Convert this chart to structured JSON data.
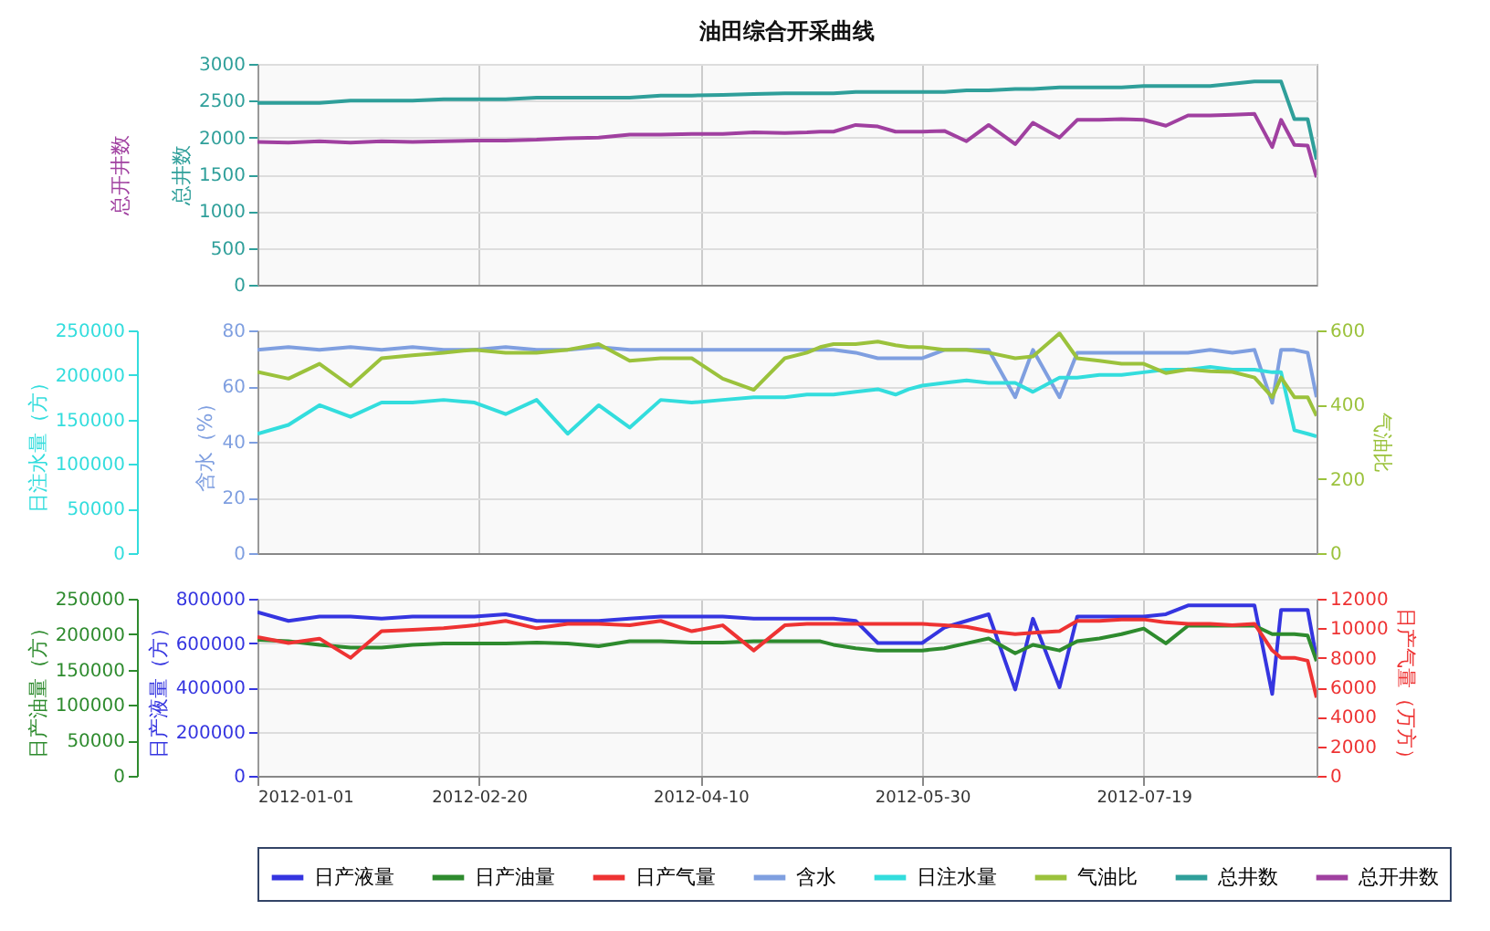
{
  "chart_data": [
    {
      "type": "line",
      "title": "油田综合开采曲线",
      "ylabel": "总井数",
      "y2label": "总开井数",
      "ylim": [
        0,
        3000
      ],
      "yticks": [
        0,
        500,
        1000,
        1500,
        2000,
        2500,
        3000
      ],
      "xlim": [
        "2012-01-01",
        "2012-08-27"
      ],
      "xticks": [
        "2012-01-01",
        "2012-02-20",
        "2012-04-10",
        "2012-05-30",
        "2012-07-19"
      ],
      "tick_labels": "y",
      "grid": true,
      "legend": "bottom",
      "x": [
        "2012-01-01",
        "2012-01-08",
        "2012-01-15",
        "2012-01-22",
        "2012-01-29",
        "2012-02-05",
        "2012-02-12",
        "2012-02-19",
        "2012-02-26",
        "2012-03-04",
        "2012-03-11",
        "2012-03-18",
        "2012-03-25",
        "2012-04-01",
        "2012-04-08",
        "2012-04-15",
        "2012-04-22",
        "2012-04-29",
        "2012-05-04",
        "2012-05-07",
        "2012-05-10",
        "2012-05-15",
        "2012-05-20",
        "2012-05-24",
        "2012-05-27",
        "2012-05-30",
        "2012-06-04",
        "2012-06-09",
        "2012-06-14",
        "2012-06-20",
        "2012-06-24",
        "2012-06-30",
        "2012-07-04",
        "2012-07-09",
        "2012-07-14",
        "2012-07-19",
        "2012-07-24",
        "2012-07-29",
        "2012-08-03",
        "2012-08-08",
        "2012-08-13",
        "2012-08-17",
        "2012-08-19",
        "2012-08-22",
        "2012-08-25",
        "2012-08-27"
      ],
      "series": [
        {
          "name": "总井数",
          "color": "#2f9f9a",
          "values": [
            2470,
            2470,
            2470,
            2500,
            2500,
            2500,
            2520,
            2520,
            2520,
            2540,
            2540,
            2540,
            2540,
            2570,
            2570,
            2580,
            2590,
            2600,
            2600,
            2600,
            2600,
            2620,
            2620,
            2620,
            2620,
            2620,
            2620,
            2640,
            2640,
            2660,
            2660,
            2680,
            2680,
            2680,
            2680,
            2700,
            2700,
            2700,
            2700,
            2730,
            2760,
            2760,
            2760,
            2250,
            2250,
            1700
          ]
        },
        {
          "name": "总开井数",
          "color": "#a040a0",
          "values": [
            1940,
            1930,
            1950,
            1930,
            1950,
            1940,
            1950,
            1960,
            1960,
            1970,
            1990,
            2000,
            2040,
            2040,
            2050,
            2050,
            2070,
            2060,
            2070,
            2080,
            2080,
            2170,
            2150,
            2080,
            2080,
            2080,
            2090,
            1950,
            2170,
            1910,
            2200,
            2000,
            2240,
            2240,
            2250,
            2240,
            2160,
            2300,
            2300,
            2310,
            2320,
            1870,
            2240,
            1900,
            1890,
            1460
          ]
        }
      ]
    },
    {
      "type": "line",
      "ylabel": "含水（%）",
      "y2label": "日注水量（方）",
      "y3label": "气油比",
      "ylim": [
        0,
        80
      ],
      "yticks": [
        0,
        20,
        40,
        60,
        80
      ],
      "y2lim": [
        0,
        250000
      ],
      "y2ticks": [
        0,
        50000,
        100000,
        150000,
        200000,
        250000
      ],
      "y3lim": [
        0,
        600
      ],
      "y3ticks": [
        0,
        200,
        400,
        600
      ],
      "xlim": [
        "2012-01-01",
        "2012-08-27"
      ],
      "xticks": [
        "2012-01-01",
        "2012-02-20",
        "2012-04-10",
        "2012-05-30",
        "2012-07-19"
      ],
      "tick_labels": "y",
      "grid": true,
      "legend": "bottom",
      "x": [
        "2012-01-01",
        "2012-01-08",
        "2012-01-15",
        "2012-01-22",
        "2012-01-29",
        "2012-02-05",
        "2012-02-12",
        "2012-02-19",
        "2012-02-26",
        "2012-03-04",
        "2012-03-11",
        "2012-03-18",
        "2012-03-25",
        "2012-04-01",
        "2012-04-08",
        "2012-04-15",
        "2012-04-22",
        "2012-04-29",
        "2012-05-04",
        "2012-05-07",
        "2012-05-10",
        "2012-05-15",
        "2012-05-20",
        "2012-05-24",
        "2012-05-27",
        "2012-05-30",
        "2012-06-04",
        "2012-06-09",
        "2012-06-14",
        "2012-06-20",
        "2012-06-24",
        "2012-06-30",
        "2012-07-04",
        "2012-07-09",
        "2012-07-14",
        "2012-07-19",
        "2012-07-24",
        "2012-07-29",
        "2012-08-03",
        "2012-08-08",
        "2012-08-13",
        "2012-08-17",
        "2012-08-19",
        "2012-08-22",
        "2012-08-25",
        "2012-08-27"
      ],
      "series": [
        {
          "name": "含水",
          "color": "#7f9fe0",
          "values": [
            73,
            74,
            73,
            74,
            73,
            74,
            73,
            73,
            74,
            73,
            73,
            74,
            73,
            73,
            73,
            73,
            73,
            73,
            73,
            73,
            73,
            72,
            70,
            70,
            70,
            70,
            73,
            73,
            73,
            56,
            73,
            56,
            72,
            72,
            72,
            72,
            72,
            72,
            73,
            72,
            73,
            54,
            73,
            73,
            72,
            56
          ]
        },
        {
          "name": "日注水量",
          "color": "#33dddd",
          "axis": "y2",
          "values": [
            134000,
            144000,
            166000,
            153000,
            169000,
            169000,
            172000,
            169000,
            156000,
            172000,
            134000,
            166000,
            141000,
            172000,
            169000,
            172000,
            175000,
            175000,
            178000,
            178000,
            178000,
            181000,
            184000,
            178000,
            184000,
            188000,
            191000,
            194000,
            191000,
            191000,
            181000,
            197000,
            197000,
            200000,
            200000,
            203000,
            206000,
            206000,
            209000,
            206000,
            206000,
            203000,
            203000,
            138000,
            134000,
            131000
          ]
        },
        {
          "name": "气油比",
          "color": "#9bc23c",
          "axis": "y3",
          "values": [
            488,
            470,
            510,
            450,
            525,
            533,
            540,
            548,
            540,
            540,
            548,
            563,
            518,
            525,
            525,
            470,
            440,
            525,
            540,
            555,
            563,
            563,
            570,
            560,
            555,
            555,
            548,
            548,
            540,
            525,
            530,
            592,
            525,
            518,
            510,
            510,
            485,
            495,
            490,
            488,
            473,
            420,
            473,
            420,
            420,
            370
          ]
        }
      ]
    },
    {
      "type": "line",
      "ylabel": "日产液量（方）",
      "y2label": "日产油量（方）",
      "y3label": "日产气量（万方）",
      "ylim": [
        0,
        800000
      ],
      "yticks": [
        0,
        200000,
        400000,
        600000,
        800000
      ],
      "y2lim": [
        0,
        250000
      ],
      "y2ticks": [
        0,
        50000,
        100000,
        150000,
        200000,
        250000
      ],
      "y3lim": [
        0,
        12000
      ],
      "y3ticks": [
        0,
        2000,
        4000,
        6000,
        8000,
        10000,
        12000
      ],
      "xlim": [
        "2012-01-01",
        "2012-08-27"
      ],
      "xticks": [
        "2012-01-01",
        "2012-02-20",
        "2012-04-10",
        "2012-05-30",
        "2012-07-19"
      ],
      "grid": true,
      "legend": "bottom",
      "x": [
        "2012-01-01",
        "2012-01-08",
        "2012-01-15",
        "2012-01-22",
        "2012-01-29",
        "2012-02-05",
        "2012-02-12",
        "2012-02-19",
        "2012-02-26",
        "2012-03-04",
        "2012-03-11",
        "2012-03-18",
        "2012-03-25",
        "2012-04-01",
        "2012-04-08",
        "2012-04-15",
        "2012-04-22",
        "2012-04-29",
        "2012-05-04",
        "2012-05-07",
        "2012-05-10",
        "2012-05-15",
        "2012-05-20",
        "2012-05-24",
        "2012-05-27",
        "2012-05-30",
        "2012-06-04",
        "2012-06-09",
        "2012-06-14",
        "2012-06-20",
        "2012-06-24",
        "2012-06-30",
        "2012-07-04",
        "2012-07-09",
        "2012-07-14",
        "2012-07-19",
        "2012-07-24",
        "2012-07-29",
        "2012-08-03",
        "2012-08-08",
        "2012-08-13",
        "2012-08-17",
        "2012-08-19",
        "2012-08-22",
        "2012-08-25",
        "2012-08-27"
      ],
      "series": [
        {
          "name": "日产液量",
          "color": "#3535e0",
          "values": [
            740000,
            700000,
            720000,
            720000,
            710000,
            720000,
            720000,
            720000,
            730000,
            700000,
            700000,
            700000,
            710000,
            720000,
            720000,
            720000,
            710000,
            710000,
            710000,
            710000,
            710000,
            700000,
            600000,
            600000,
            600000,
            600000,
            670000,
            700000,
            730000,
            390000,
            710000,
            400000,
            720000,
            720000,
            720000,
            720000,
            730000,
            770000,
            770000,
            770000,
            770000,
            370000,
            750000,
            750000,
            750000,
            530000
          ]
        },
        {
          "name": "日产油量",
          "color": "#2e8b2e",
          "axis": "y2",
          "values": [
            192000,
            190000,
            185000,
            181000,
            181000,
            185000,
            187000,
            187000,
            187000,
            188000,
            187000,
            183000,
            190000,
            190000,
            188000,
            188000,
            190000,
            190000,
            190000,
            190000,
            185000,
            180000,
            177000,
            177000,
            177000,
            177000,
            180000,
            187000,
            194000,
            173000,
            185000,
            177000,
            190000,
            194000,
            200000,
            208000,
            187000,
            212000,
            212000,
            212000,
            212000,
            200000,
            200000,
            200000,
            198000,
            162000
          ]
        },
        {
          "name": "日产气量",
          "color": "#ee3333",
          "axis": "y3",
          "values": [
            9400,
            9000,
            9300,
            8000,
            9800,
            9900,
            10000,
            10200,
            10500,
            10000,
            10300,
            10300,
            10200,
            10500,
            9800,
            10200,
            8500,
            10200,
            10300,
            10300,
            10300,
            10300,
            10300,
            10300,
            10300,
            10300,
            10200,
            10100,
            9800,
            9600,
            9700,
            9800,
            10500,
            10500,
            10600,
            10600,
            10400,
            10300,
            10300,
            10200,
            10300,
            8500,
            8000,
            8000,
            7800,
            5300
          ]
        }
      ]
    }
  ]
}
